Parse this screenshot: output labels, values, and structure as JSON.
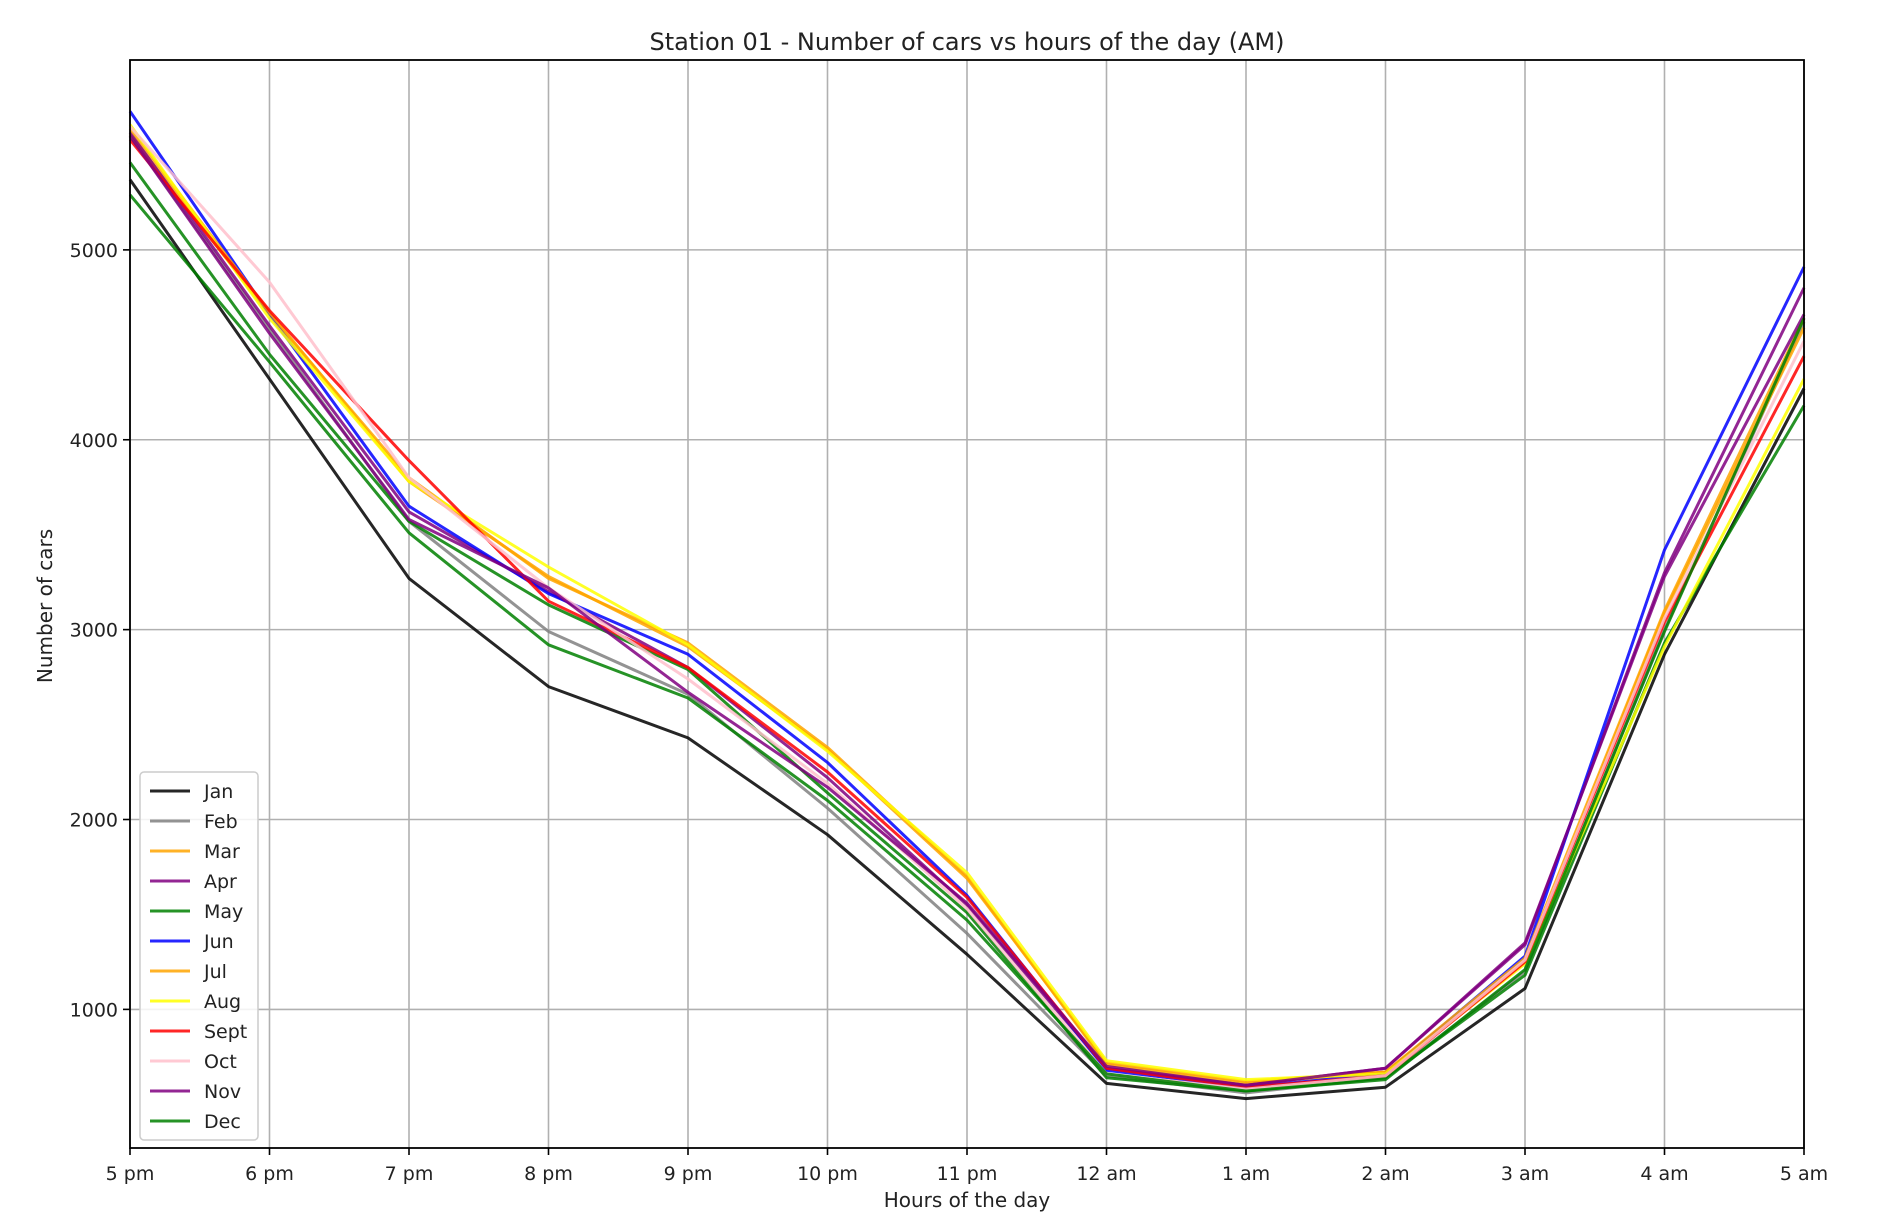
{
  "chart_data": {
    "type": "line",
    "title": "Station 01 - Number of cars vs hours of the day (AM)",
    "xlabel": "Hours of the day",
    "ylabel": "Number of cars",
    "categories": [
      "5 pm",
      "6 pm",
      "7 pm",
      "8 pm",
      "9 pm",
      "10 pm",
      "11 pm",
      "12 am",
      "1 am",
      "2 am",
      "3 am",
      "4 am",
      "5 am"
    ],
    "ylim": [
      270,
      6000
    ],
    "yticks": [
      1000,
      2000,
      3000,
      4000,
      5000
    ],
    "grid": true,
    "legend_position": "lower-left",
    "series": [
      {
        "name": "Jan",
        "color": "#000000",
        "values": [
          5370,
          4320,
          3270,
          2700,
          2430,
          1920,
          1290,
          610,
          530,
          590,
          1110,
          2870,
          4270
        ]
      },
      {
        "name": "Feb",
        "color": "#808080",
        "values": [
          5600,
          4580,
          3570,
          2990,
          2660,
          2060,
          1400,
          650,
          560,
          640,
          1200,
          3000,
          4620
        ]
      },
      {
        "name": "Mar",
        "color": "#ffa500",
        "values": [
          5610,
          4660,
          3800,
          3270,
          2930,
          2380,
          1700,
          710,
          610,
          670,
          1250,
          3090,
          4590
        ]
      },
      {
        "name": "Apr",
        "color": "#800080",
        "values": [
          5620,
          4600,
          3620,
          3200,
          2800,
          2220,
          1550,
          690,
          600,
          690,
          1340,
          3300,
          4800
        ]
      },
      {
        "name": "May",
        "color": "#008000",
        "values": [
          5460,
          4450,
          3570,
          3130,
          2790,
          2140,
          1510,
          640,
          570,
          640,
          1180,
          2930,
          4180
        ]
      },
      {
        "name": "Jun",
        "color": "#0000ff",
        "values": [
          5730,
          4660,
          3650,
          3190,
          2870,
          2300,
          1600,
          680,
          590,
          660,
          1280,
          3420,
          4910
        ]
      },
      {
        "name": "Jul",
        "color": "#ffa500",
        "values": [
          5640,
          4670,
          3780,
          3280,
          2910,
          2370,
          1690,
          720,
          620,
          670,
          1270,
          3100,
          4640
        ]
      },
      {
        "name": "Aug",
        "color": "#ffff00",
        "values": [
          5660,
          4640,
          3780,
          3330,
          2920,
          2360,
          1720,
          730,
          630,
          660,
          1240,
          2910,
          4320
        ]
      },
      {
        "name": "Sept",
        "color": "#ff0000",
        "values": [
          5580,
          4680,
          3890,
          3150,
          2800,
          2250,
          1590,
          690,
          590,
          650,
          1250,
          3040,
          4440
        ]
      },
      {
        "name": "Oct",
        "color": "#ffc0cb",
        "values": [
          5650,
          4830,
          3800,
          3220,
          2740,
          2190,
          1530,
          660,
          580,
          650,
          1260,
          3060,
          4520
        ]
      },
      {
        "name": "Nov",
        "color": "#800080",
        "values": [
          5600,
          4560,
          3580,
          3220,
          2670,
          2170,
          1560,
          700,
          600,
          690,
          1350,
          3280,
          4660
        ]
      },
      {
        "name": "Dec",
        "color": "#008000",
        "values": [
          5290,
          4410,
          3510,
          2920,
          2640,
          2100,
          1470,
          660,
          570,
          630,
          1210,
          2990,
          4640
        ]
      }
    ]
  }
}
